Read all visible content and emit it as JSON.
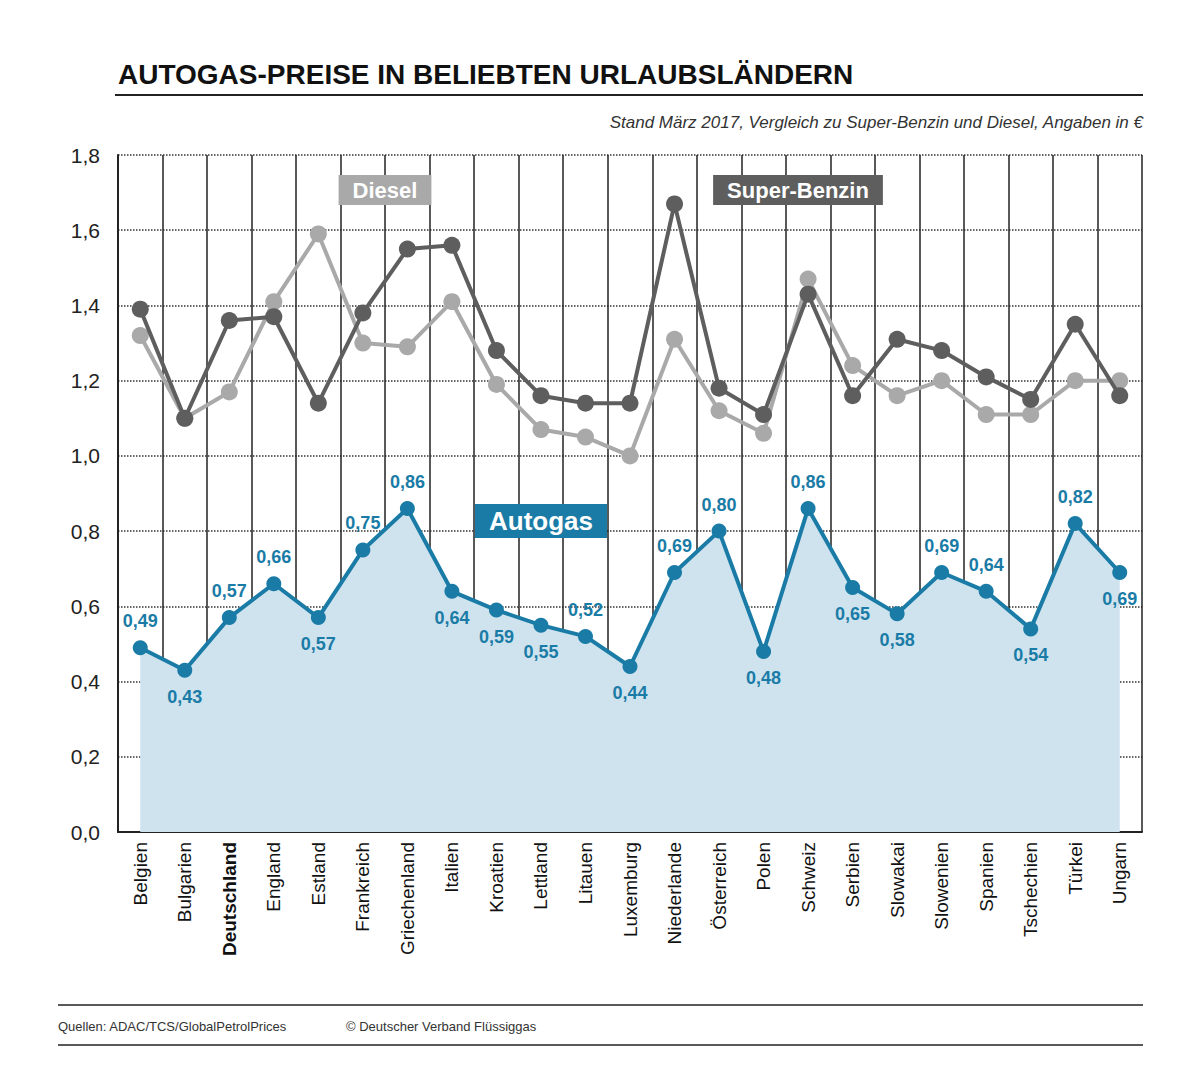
{
  "chart_data": {
    "type": "line",
    "title": "AUTOGAS-PREISE IN BELIEBTEN URLAUBSLÄNDERN",
    "subtitle": "Stand März 2017, Vergleich zu Super-Benzin und Diesel, Angaben in €",
    "annotations": [
      "Quellen: ADAC/TCS/GlobalPetrolPrices",
      "© Deutscher Verband Flüssiggas"
    ],
    "categories": [
      "Belgien",
      "Bulgarien",
      "Deutschland",
      "England",
      "Estland",
      "Frankreich",
      "Griechenland",
      "Italien",
      "Kroatien",
      "Lettland",
      "Litauen",
      "Luxemburg",
      "Niederlande",
      "Österreich",
      "Polen",
      "Schweiz",
      "Serbien",
      "Slowakai",
      "Slowenien",
      "Spanien",
      "Tschechien",
      "Türkei",
      "Ungarn"
    ],
    "series": [
      {
        "name": "Diesel",
        "color": "#a9a9a9",
        "marker": "circle",
        "values": [
          1.32,
          1.1,
          1.17,
          1.41,
          1.59,
          1.3,
          1.29,
          1.41,
          1.19,
          1.07,
          1.05,
          1.0,
          1.31,
          1.12,
          1.06,
          1.47,
          1.24,
          1.16,
          1.2,
          1.11,
          1.11,
          1.2,
          1.2
        ]
      },
      {
        "name": "Super-Benzin",
        "color": "#5e5e5e",
        "marker": "circle",
        "values": [
          1.39,
          1.1,
          1.36,
          1.37,
          1.14,
          1.38,
          1.55,
          1.56,
          1.28,
          1.16,
          1.14,
          1.14,
          1.67,
          1.18,
          1.11,
          1.43,
          1.16,
          1.31,
          1.28,
          1.21,
          1.15,
          1.35,
          1.16
        ]
      },
      {
        "name": "Autogas",
        "color": "#1a7ca6",
        "type": "area",
        "marker": "circle",
        "data_labels": true,
        "values": [
          0.49,
          0.43,
          0.57,
          0.66,
          0.57,
          0.75,
          0.86,
          0.64,
          0.59,
          0.55,
          0.52,
          0.44,
          0.69,
          0.8,
          0.48,
          0.86,
          0.65,
          0.58,
          0.69,
          0.64,
          0.54,
          0.82,
          0.69
        ],
        "value_labels": [
          "0,49",
          "0,43",
          "0,57",
          "0,66",
          "0,57",
          "0,75",
          "0,86",
          "0,64",
          "0,59",
          "0,55",
          "0,52",
          "0,44",
          "0,69",
          "0,80",
          "0,48",
          "0,86",
          "0,65",
          "0,58",
          "0,69",
          "0,64",
          "0,54",
          "0,82",
          "0,69"
        ]
      }
    ],
    "ylim": [
      0,
      1.8
    ],
    "yticks": [
      {
        "value": 0,
        "label": "0,0"
      },
      {
        "value": 0.2,
        "label": "0,2"
      },
      {
        "value": 0.4,
        "label": "0,4"
      },
      {
        "value": 0.6,
        "label": "0,6"
      },
      {
        "value": 0.8,
        "label": "0,8"
      },
      {
        "value": 1.0,
        "label": "1,0"
      },
      {
        "value": 1.2,
        "label": "1,2"
      },
      {
        "value": 1.4,
        "label": "1,4"
      },
      {
        "value": 1.6,
        "label": "1,6"
      },
      {
        "value": 1.8,
        "label": "1,8"
      }
    ],
    "grid": true
  }
}
